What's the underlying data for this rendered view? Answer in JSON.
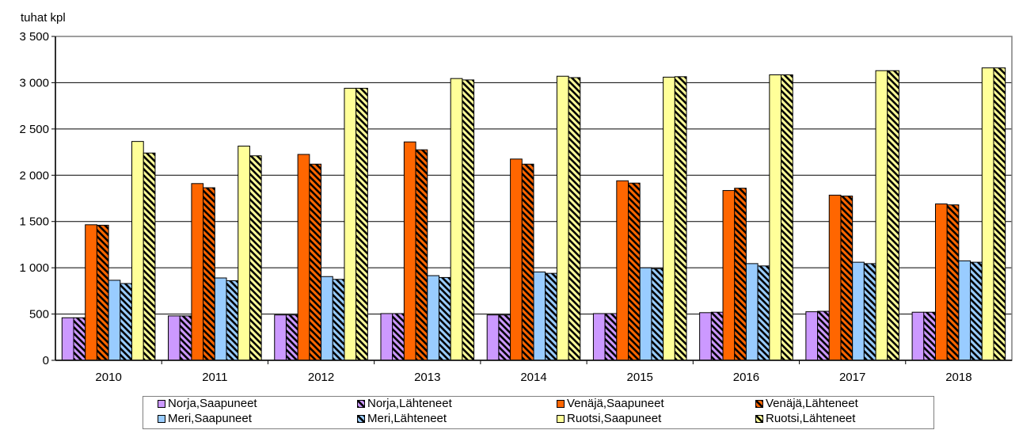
{
  "chart_data": {
    "type": "bar",
    "ylabel": "tuhat kpl",
    "ylim": [
      0,
      3500
    ],
    "yticks": [
      0,
      500,
      1000,
      1500,
      2000,
      2500,
      3000,
      3500
    ],
    "ytick_labels": [
      "0",
      "500",
      "1 000",
      "1 500",
      "2 000",
      "2 500",
      "3 000",
      "3 500"
    ],
    "categories": [
      "2010",
      "2011",
      "2012",
      "2013",
      "2014",
      "2015",
      "2016",
      "2017",
      "2018"
    ],
    "legend_position": "bottom",
    "series": [
      {
        "name": "Norja,Saapuneet",
        "color": "#CC99FF",
        "pattern": "solid",
        "values": [
          460,
          480,
          490,
          505,
          490,
          505,
          515,
          525,
          520
        ]
      },
      {
        "name": "Norja,Lähteneet",
        "color": "#CC99FF",
        "pattern": "hatched",
        "values": [
          460,
          480,
          490,
          505,
          490,
          505,
          520,
          530,
          520
        ]
      },
      {
        "name": "Venäjä,Saapuneet",
        "color": "#FF6600",
        "pattern": "solid",
        "values": [
          1465,
          1910,
          2225,
          2360,
          2175,
          1940,
          1835,
          1785,
          1690
        ]
      },
      {
        "name": "Venäjä,Lähteneet",
        "color": "#FF6600",
        "pattern": "hatched",
        "values": [
          1460,
          1865,
          2120,
          2275,
          2120,
          1915,
          1860,
          1775,
          1680
        ]
      },
      {
        "name": "Meri,Saapuneet",
        "color": "#99CCFF",
        "pattern": "solid",
        "values": [
          865,
          890,
          905,
          915,
          955,
          1000,
          1045,
          1060,
          1075
        ]
      },
      {
        "name": "Meri,Lähteneet",
        "color": "#99CCFF",
        "pattern": "hatched",
        "values": [
          830,
          860,
          875,
          895,
          940,
          990,
          1020,
          1045,
          1060
        ]
      },
      {
        "name": "Ruotsi,Saapuneet",
        "color": "#FFFF99",
        "pattern": "solid",
        "values": [
          2365,
          2315,
          2940,
          3045,
          3070,
          3060,
          3085,
          3130,
          3160
        ]
      },
      {
        "name": "Ruotsi,Lähteneet",
        "color": "#FFFF99",
        "pattern": "hatched",
        "values": [
          2240,
          2210,
          2940,
          3030,
          3055,
          3065,
          3085,
          3130,
          3160
        ]
      }
    ]
  }
}
